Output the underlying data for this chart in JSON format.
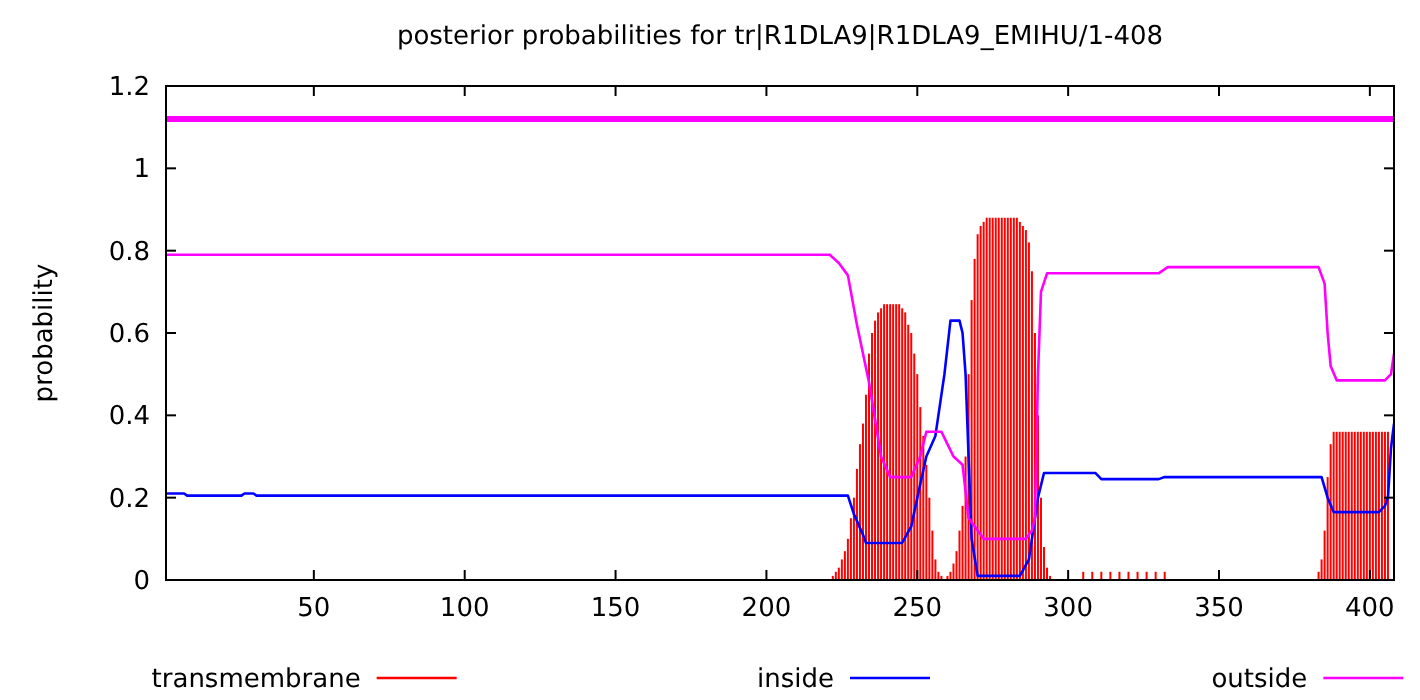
{
  "chart_data": {
    "type": "line",
    "title": "posterior probabilities for tr|R1DLA9|R1DLA9_EMIHU/1-408",
    "ylabel": "probability",
    "xlim": [
      1,
      408
    ],
    "ylim": [
      0,
      1.2
    ],
    "xticks": [
      50,
      100,
      150,
      200,
      250,
      300,
      350,
      400
    ],
    "yticks": [
      0,
      0.2,
      0.4,
      0.6,
      0.8,
      1,
      1.2
    ],
    "grid": false,
    "legend": "bottom",
    "ref_lines": [
      {
        "axis": "y",
        "value": 1.12,
        "color": "#ff00ff"
      }
    ],
    "series": [
      {
        "name": "transmembrane",
        "type": "bar",
        "color": "#ff0000",
        "x": [
          222,
          223,
          224,
          225,
          226,
          227,
          228,
          229,
          230,
          231,
          232,
          233,
          234,
          235,
          236,
          237,
          238,
          239,
          240,
          241,
          242,
          243,
          244,
          245,
          246,
          247,
          248,
          249,
          250,
          251,
          252,
          253,
          254,
          255,
          256,
          257,
          258,
          260,
          261,
          262,
          263,
          264,
          265,
          266,
          267,
          268,
          269,
          270,
          271,
          272,
          273,
          274,
          275,
          276,
          277,
          278,
          279,
          280,
          281,
          282,
          283,
          284,
          285,
          286,
          287,
          288,
          289,
          290,
          291,
          292,
          293,
          294,
          305,
          308,
          311,
          314,
          317,
          320,
          323,
          326,
          329,
          332,
          383,
          384,
          385,
          386,
          387,
          388,
          389,
          390,
          391,
          392,
          393,
          394,
          395,
          396,
          397,
          398,
          399,
          400,
          401,
          402,
          403,
          404,
          405,
          406
        ],
        "values": [
          0.01,
          0.02,
          0.03,
          0.05,
          0.07,
          0.1,
          0.15,
          0.2,
          0.27,
          0.33,
          0.38,
          0.45,
          0.55,
          0.6,
          0.63,
          0.65,
          0.66,
          0.67,
          0.67,
          0.67,
          0.67,
          0.67,
          0.67,
          0.66,
          0.65,
          0.62,
          0.6,
          0.55,
          0.5,
          0.42,
          0.35,
          0.28,
          0.2,
          0.12,
          0.05,
          0.02,
          0.01,
          0.01,
          0.02,
          0.04,
          0.07,
          0.12,
          0.18,
          0.3,
          0.5,
          0.68,
          0.78,
          0.84,
          0.86,
          0.87,
          0.88,
          0.88,
          0.88,
          0.88,
          0.88,
          0.88,
          0.88,
          0.88,
          0.88,
          0.88,
          0.88,
          0.87,
          0.86,
          0.85,
          0.82,
          0.75,
          0.6,
          0.4,
          0.2,
          0.08,
          0.03,
          0.01,
          0.02,
          0.02,
          0.02,
          0.02,
          0.02,
          0.02,
          0.02,
          0.02,
          0.02,
          0.02,
          0.02,
          0.05,
          0.12,
          0.25,
          0.33,
          0.36,
          0.36,
          0.36,
          0.36,
          0.36,
          0.36,
          0.36,
          0.36,
          0.36,
          0.36,
          0.36,
          0.36,
          0.36,
          0.36,
          0.36,
          0.36,
          0.36,
          0.36,
          0.36
        ]
      },
      {
        "name": "inside",
        "color": "#0000ff",
        "x": [
          1,
          7,
          8,
          26,
          27,
          30,
          31,
          227,
          229,
          232,
          233,
          245,
          248,
          250,
          253,
          256,
          259,
          261,
          264,
          265,
          266,
          267,
          268,
          270,
          284,
          287,
          290,
          292,
          309,
          311,
          330,
          332,
          384,
          386,
          388,
          403,
          405,
          406,
          407,
          408
        ],
        "values": [
          0.21,
          0.21,
          0.205,
          0.205,
          0.21,
          0.21,
          0.205,
          0.205,
          0.16,
          0.11,
          0.09,
          0.09,
          0.13,
          0.2,
          0.3,
          0.35,
          0.5,
          0.63,
          0.63,
          0.6,
          0.5,
          0.3,
          0.1,
          0.01,
          0.01,
          0.05,
          0.2,
          0.26,
          0.26,
          0.245,
          0.245,
          0.25,
          0.25,
          0.2,
          0.165,
          0.165,
          0.18,
          0.2,
          0.32,
          0.38
        ]
      },
      {
        "name": "outside",
        "color": "#ff00ff",
        "x": [
          1,
          221,
          224,
          227,
          230,
          232,
          234,
          236,
          238,
          241,
          248,
          251,
          253,
          258,
          260,
          262,
          265,
          267,
          270,
          272,
          286,
          288,
          289,
          290,
          291,
          293,
          330,
          333,
          383,
          385,
          386,
          387,
          389,
          405,
          407,
          408
        ],
        "values": [
          0.79,
          0.79,
          0.77,
          0.74,
          0.62,
          0.55,
          0.48,
          0.39,
          0.3,
          0.25,
          0.25,
          0.3,
          0.36,
          0.36,
          0.33,
          0.3,
          0.28,
          0.15,
          0.12,
          0.1,
          0.1,
          0.12,
          0.15,
          0.5,
          0.7,
          0.745,
          0.745,
          0.76,
          0.76,
          0.72,
          0.6,
          0.52,
          0.485,
          0.485,
          0.5,
          0.55
        ]
      }
    ]
  }
}
